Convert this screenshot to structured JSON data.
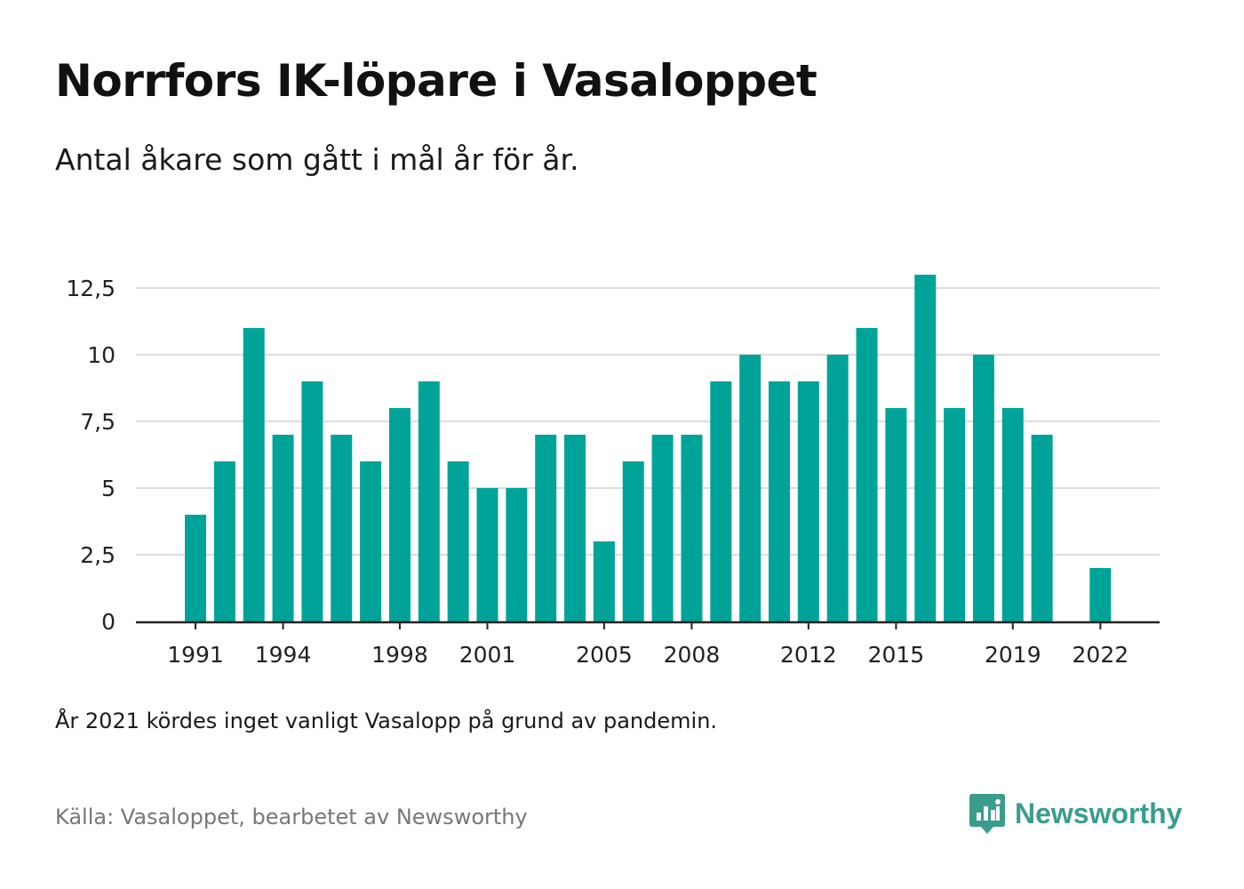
{
  "title": "Norrfors IK-löpare i Vasaloppet",
  "subtitle": "Antal åkare som gått i mål år för år.",
  "note": "År 2021 kördes inget vanligt Vasalopp på grund av pandemin.",
  "source": "Källa: Vasaloppet, bearbetet av Newsworthy",
  "brand": {
    "name": "Newsworthy",
    "color": "#3a9c8c",
    "icon": "newsworthy-logo-icon"
  },
  "colors": {
    "bar": "#00a398",
    "grid": "#dddddd",
    "axis": "#222222",
    "text": "#222222"
  },
  "chart_data": {
    "type": "bar",
    "title": "Norrfors IK-löpare i Vasaloppet",
    "xlabel": "",
    "ylabel": "",
    "categories": [
      1991,
      1992,
      1993,
      1994,
      1995,
      1996,
      1997,
      1998,
      1999,
      2000,
      2001,
      2002,
      2003,
      2004,
      2005,
      2006,
      2007,
      2008,
      2009,
      2010,
      2011,
      2012,
      2013,
      2014,
      2015,
      2016,
      2017,
      2018,
      2019,
      2020,
      2021,
      2022
    ],
    "values": [
      4,
      6,
      11,
      7,
      9,
      7,
      6,
      8,
      9,
      6,
      5,
      5,
      7,
      7,
      3,
      6,
      7,
      7,
      9,
      10,
      9,
      9,
      10,
      11,
      8,
      13,
      8,
      10,
      8,
      7,
      0,
      2
    ],
    "x_tick_labels": [
      "1991",
      "1994",
      "1998",
      "2001",
      "2005",
      "2008",
      "2012",
      "2015",
      "2019",
      "2022"
    ],
    "y_ticks": [
      0,
      2.5,
      5,
      7.5,
      10,
      12.5
    ],
    "y_tick_labels": [
      "0",
      "2,5",
      "5",
      "7,5",
      "10",
      "12,5"
    ],
    "ylim": [
      0,
      13.75
    ],
    "grid": true,
    "legend": "none"
  }
}
